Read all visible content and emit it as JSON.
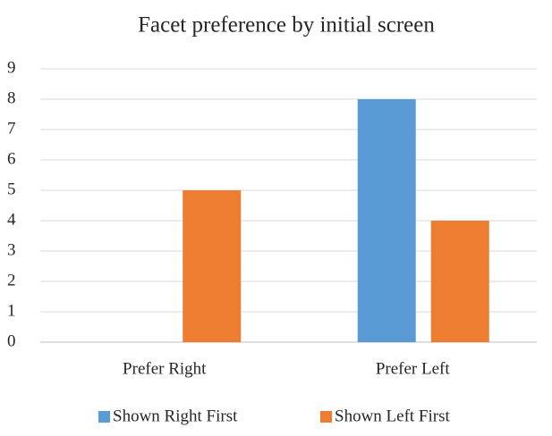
{
  "chart_data": {
    "type": "bar",
    "title": "Facet preference by initial screen",
    "categories": [
      "Prefer Right",
      "Prefer Left"
    ],
    "series": [
      {
        "name": "Shown Right First",
        "color": "#5b9bd5",
        "values": [
          0,
          8
        ]
      },
      {
        "name": "Shown Left First",
        "color": "#ed7d31",
        "values": [
          5,
          4
        ]
      }
    ],
    "ylim": [
      0,
      9
    ],
    "yticks": [
      0,
      1,
      2,
      3,
      4,
      5,
      6,
      7,
      8,
      9
    ],
    "grid": true,
    "legend": "bottom"
  }
}
